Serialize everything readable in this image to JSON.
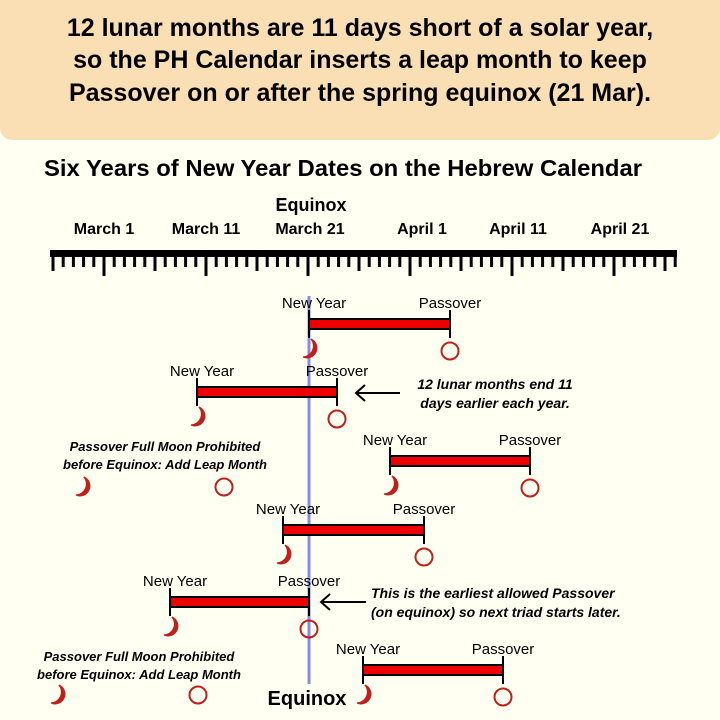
{
  "banner": {
    "lines": [
      "12 lunar months are 11 days short of a solar year,",
      "so the PH Calendar inserts a leap month to keep",
      "Passover on or after the spring equinox (21 Mar)."
    ]
  },
  "title": "Six Years of New Year Dates on the Hebrew Calendar",
  "equinox_label": "Equinox",
  "axis": {
    "labels": [
      "March 1",
      "March 11",
      "March 21",
      "April 1",
      "April 11",
      "April 21"
    ]
  },
  "rows": [
    {
      "new_year": "New Year",
      "passover": "Passover"
    },
    {
      "new_year": "New Year",
      "passover": "Passover"
    },
    {
      "new_year": "New Year",
      "passover": "Passover"
    },
    {
      "new_year": "New Year",
      "passover": "Passover"
    },
    {
      "new_year": "New Year",
      "passover": "Passover"
    },
    {
      "new_year": "New Year",
      "passover": "Passover"
    }
  ],
  "notes": {
    "drift": [
      "12 lunar months end 11",
      "days earlier each year."
    ],
    "earliest": [
      "This is the earliest allowed Passover",
      "(on equinox) so next triad starts later."
    ],
    "leap1": [
      "Passover Full Moon Prohibited",
      "before Equinox: Add Leap Month"
    ],
    "leap2": [
      "Passover Full Moon Prohibited",
      "before Equinox: Add Leap Month"
    ]
  },
  "colors": {
    "banner": "#fadfb4",
    "bar": "#ee0000",
    "moon": "#c0201a",
    "equinox_line": "#8888e8"
  }
}
